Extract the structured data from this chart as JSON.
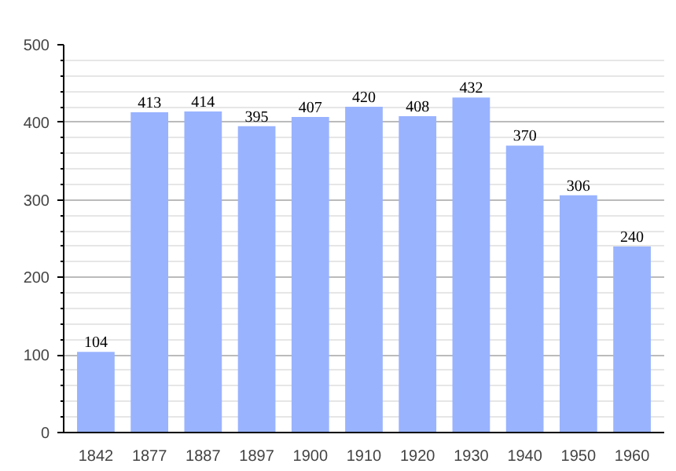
{
  "chart_data": {
    "type": "bar",
    "categories": [
      "1842",
      "1877",
      "1887",
      "1897",
      "1900",
      "1910",
      "1920",
      "1930",
      "1940",
      "1950",
      "1960"
    ],
    "values": [
      104,
      413,
      414,
      395,
      407,
      420,
      408,
      432,
      370,
      306,
      240
    ],
    "color": "#99b3ff",
    "ylim": [
      0,
      500
    ],
    "yticks": [
      0,
      100,
      200,
      300,
      400,
      500
    ],
    "grid": "y",
    "data_labels": true
  }
}
